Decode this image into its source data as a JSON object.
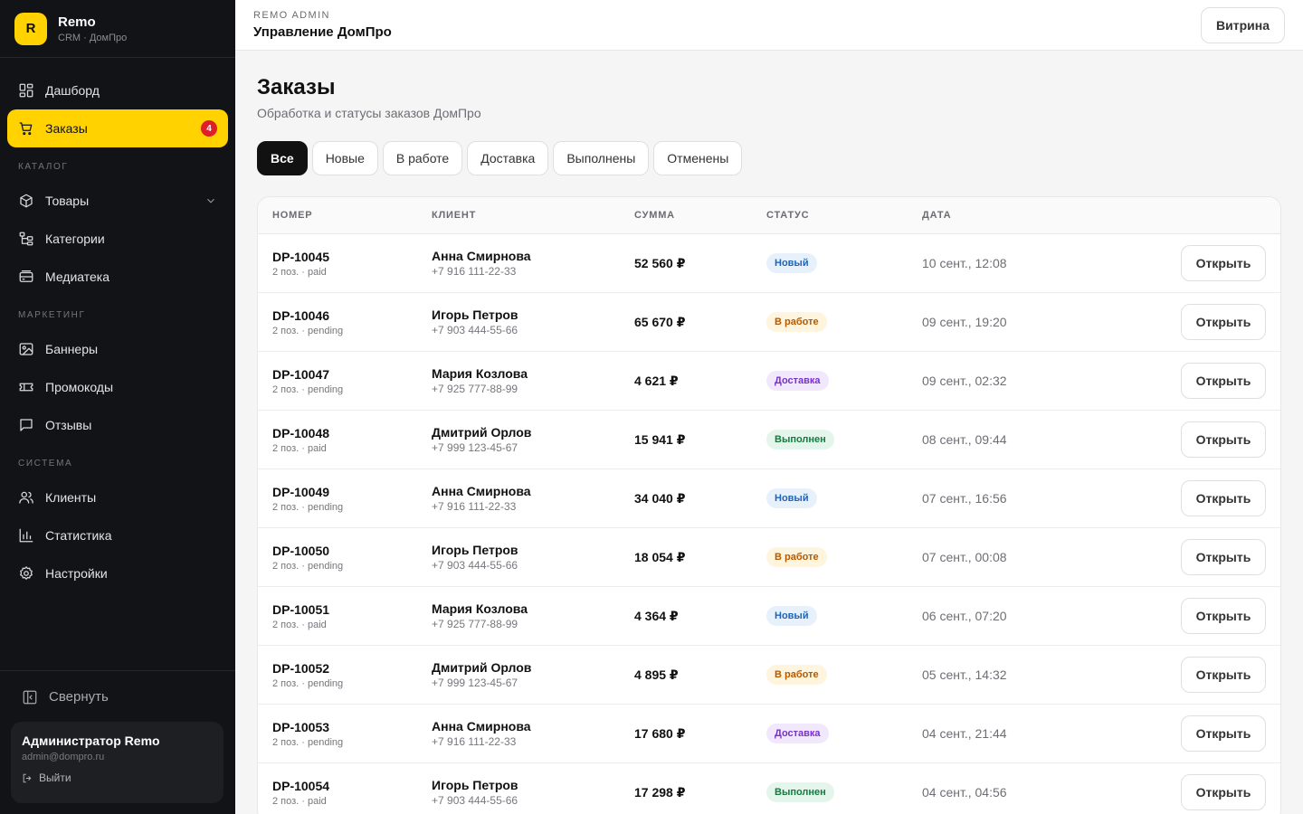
{
  "brand": {
    "logo_letter": "R",
    "name": "Remo",
    "subtitle": "CRM · ДомПро",
    "accent": "#ffd200"
  },
  "sidebar": {
    "items_top": [
      {
        "label": "Дашборд",
        "icon": "dashboard-icon"
      },
      {
        "label": "Заказы",
        "icon": "cart-icon",
        "badge": "4",
        "active": true
      }
    ],
    "catalog_title": "КАТАЛОГ",
    "catalog": [
      {
        "label": "Товары",
        "icon": "box-icon"
      },
      {
        "label": "Категории",
        "icon": "tree-icon"
      },
      {
        "label": "Медиатека",
        "icon": "media-icon"
      }
    ],
    "marketing_title": "МАРКЕТИНГ",
    "marketing": [
      {
        "label": "Баннеры",
        "icon": "image-icon"
      },
      {
        "label": "Промокоды",
        "icon": "ticket-icon"
      },
      {
        "label": "Отзывы",
        "icon": "message-icon"
      }
    ],
    "system_title": "СИСТЕМА",
    "system": [
      {
        "label": "Клиенты",
        "icon": "users-icon"
      },
      {
        "label": "Статистика",
        "icon": "chart-icon"
      },
      {
        "label": "Настройки",
        "icon": "gear-icon"
      }
    ],
    "collapse_label": "Свернуть",
    "user": {
      "name": "Администратор Remo",
      "email": "admin@dompro.ru",
      "logout": "Выйти"
    }
  },
  "header": {
    "kicker": "REMO ADMIN",
    "title": "Управление ДомПро",
    "storefront_button": "Витрина"
  },
  "main": {
    "title": "Заказы",
    "subtitle": "Обработка и статусы заказов ДомПро",
    "tabs": [
      "Все",
      "Новые",
      "В работе",
      "Доставка",
      "Выполнены",
      "Отменены"
    ],
    "active_tab": "Все",
    "table": {
      "headers": [
        "НОМЕР",
        "КЛИЕНТ",
        "СУММА",
        "СТАТУС",
        "ДАТА"
      ],
      "open_label": "Открыть",
      "rows": [
        {
          "number": "DP-10045",
          "meta": "2 поз. · paid",
          "client": "Анна Смирнова",
          "phone": "+7 916 111-22-33",
          "sum": "52 560 ₽",
          "status": "Новый",
          "status_kind": "new",
          "date": "10 сент., 12:08"
        },
        {
          "number": "DP-10046",
          "meta": "2 поз. · pending",
          "client": "Игорь Петров",
          "phone": "+7 903 444-55-66",
          "sum": "65 670 ₽",
          "status": "В работе",
          "status_kind": "work",
          "date": "09 сент., 19:20"
        },
        {
          "number": "DP-10047",
          "meta": "2 поз. · pending",
          "client": "Мария Козлова",
          "phone": "+7 925 777-88-99",
          "sum": "4 621 ₽",
          "status": "Доставка",
          "status_kind": "ship",
          "date": "09 сент., 02:32"
        },
        {
          "number": "DP-10048",
          "meta": "2 поз. · paid",
          "client": "Дмитрий Орлов",
          "phone": "+7 999 123-45-67",
          "sum": "15 941 ₽",
          "status": "Выполнен",
          "status_kind": "done",
          "date": "08 сент., 09:44"
        },
        {
          "number": "DP-10049",
          "meta": "2 поз. · pending",
          "client": "Анна Смирнова",
          "phone": "+7 916 111-22-33",
          "sum": "34 040 ₽",
          "status": "Новый",
          "status_kind": "new",
          "date": "07 сент., 16:56"
        },
        {
          "number": "DP-10050",
          "meta": "2 поз. · pending",
          "client": "Игорь Петров",
          "phone": "+7 903 444-55-66",
          "sum": "18 054 ₽",
          "status": "В работе",
          "status_kind": "work",
          "date": "07 сент., 00:08"
        },
        {
          "number": "DP-10051",
          "meta": "2 поз. · paid",
          "client": "Мария Козлова",
          "phone": "+7 925 777-88-99",
          "sum": "4 364 ₽",
          "status": "Новый",
          "status_kind": "new",
          "date": "06 сент., 07:20"
        },
        {
          "number": "DP-10052",
          "meta": "2 поз. · pending",
          "client": "Дмитрий Орлов",
          "phone": "+7 999 123-45-67",
          "sum": "4 895 ₽",
          "status": "В работе",
          "status_kind": "work",
          "date": "05 сент., 14:32"
        },
        {
          "number": "DP-10053",
          "meta": "2 поз. · pending",
          "client": "Анна Смирнова",
          "phone": "+7 916 111-22-33",
          "sum": "17 680 ₽",
          "status": "Доставка",
          "status_kind": "ship",
          "date": "04 сент., 21:44"
        },
        {
          "number": "DP-10054",
          "meta": "2 поз. · paid",
          "client": "Игорь Петров",
          "phone": "+7 903 444-55-66",
          "sum": "17 298 ₽",
          "status": "Выполнен",
          "status_kind": "done",
          "date": "04 сент., 04:56"
        }
      ]
    }
  }
}
